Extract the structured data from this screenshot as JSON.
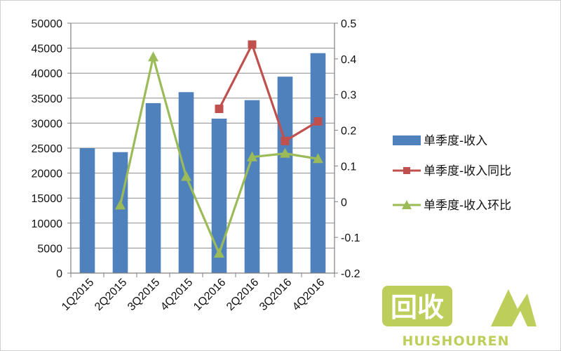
{
  "chart_data": {
    "type": "bar",
    "categories": [
      "1Q2015",
      "2Q2015",
      "3Q2015",
      "4Q2015",
      "1Q2016",
      "2Q2016",
      "3Q2016",
      "4Q2016"
    ],
    "series": [
      {
        "name": "单季度-收入",
        "type": "bar",
        "axis": "left",
        "color": "#4f81bd",
        "values": [
          25000,
          24200,
          34000,
          36200,
          30900,
          34600,
          39300,
          44000
        ]
      },
      {
        "name": "单季度-收入同比",
        "type": "line",
        "axis": "right",
        "color": "#c0504d",
        "marker": "square",
        "values": [
          null,
          null,
          null,
          null,
          0.26,
          0.44,
          0.17,
          0.225
        ]
      },
      {
        "name": "单季度-收入环比",
        "type": "line",
        "axis": "right",
        "color": "#9bbb59",
        "marker": "triangle",
        "values": [
          null,
          -0.01,
          0.405,
          0.07,
          -0.145,
          0.125,
          0.135,
          0.12
        ]
      }
    ],
    "y_left": {
      "ylim": [
        0,
        50000
      ],
      "ticks": [
        "0",
        "5000",
        "10000",
        "15000",
        "20000",
        "25000",
        "30000",
        "35000",
        "40000",
        "45000",
        "50000"
      ]
    },
    "y_right": {
      "ylim": [
        -0.2,
        0.5
      ],
      "ticks": [
        "-0.2",
        "-0.1",
        "0",
        "0.1",
        "0.2",
        "0.3",
        "0.4",
        "0.5"
      ]
    },
    "legend_position": "right",
    "grid": true
  },
  "watermark": {
    "text": "HUISHOUREN",
    "logo_text": "回收"
  }
}
